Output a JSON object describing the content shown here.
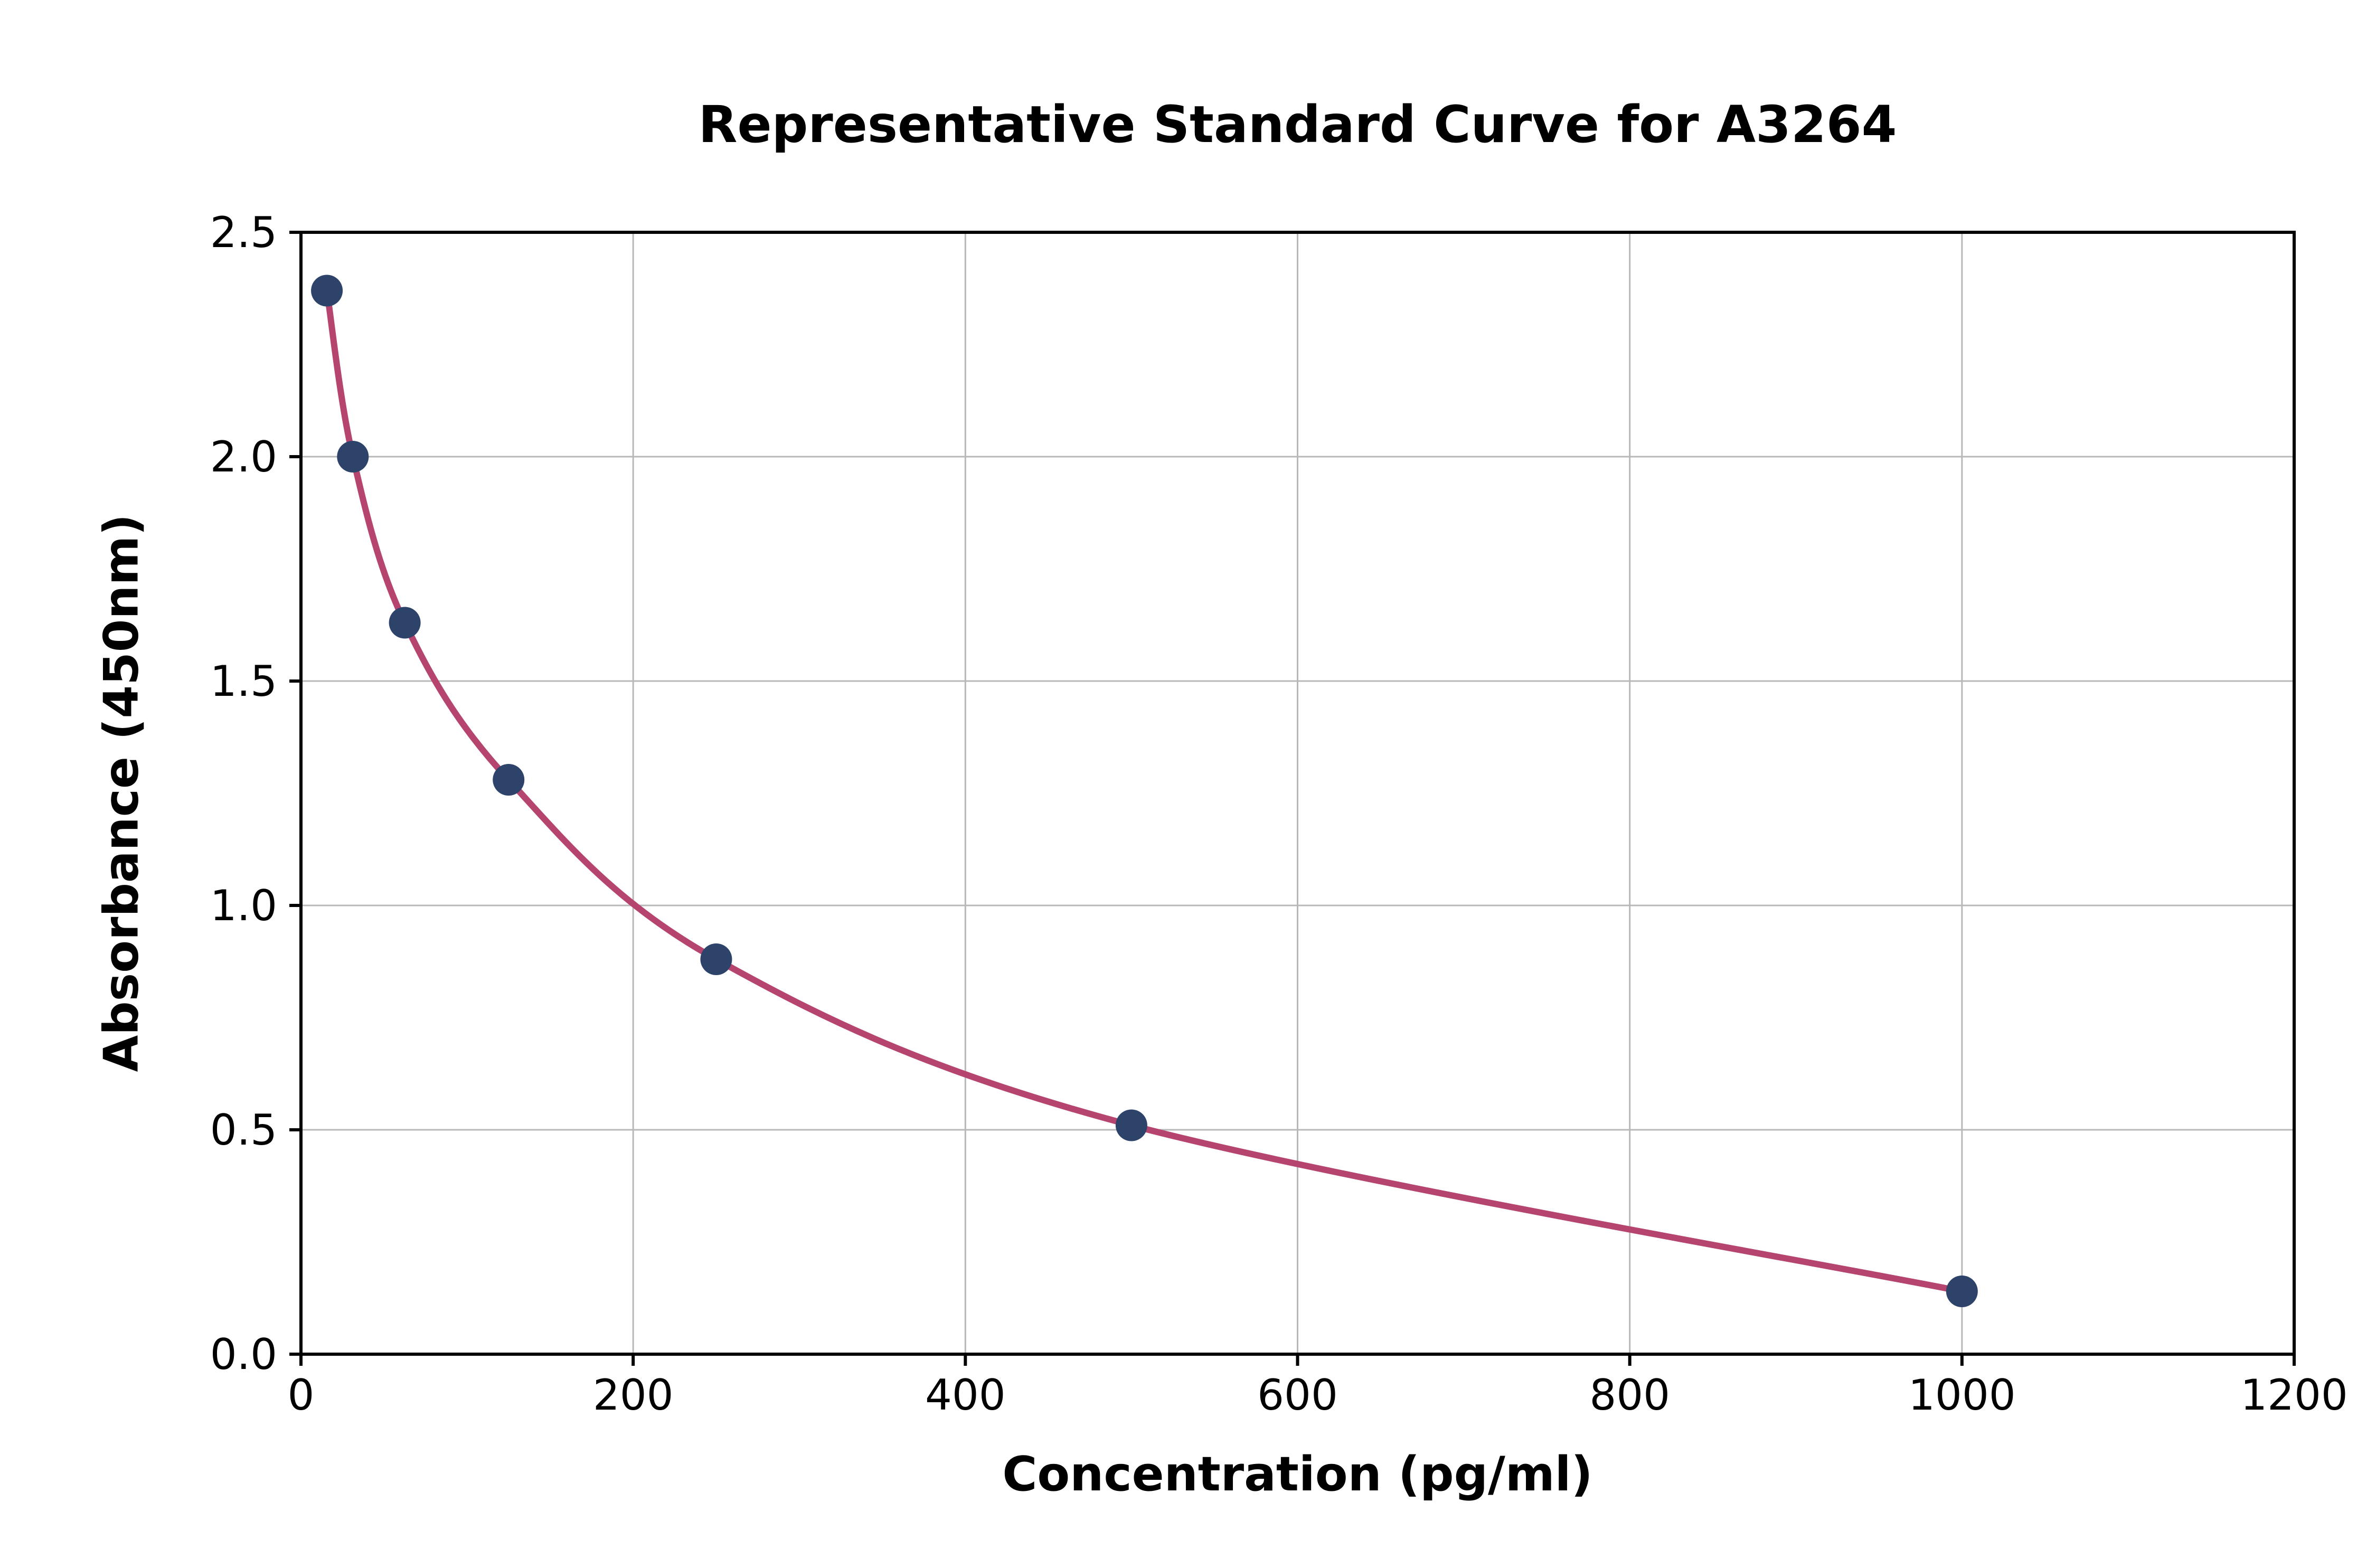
{
  "chart_data": {
    "type": "scatter",
    "title": "Representative Standard Curve for A3264",
    "xlabel": "Concentration (pg/ml)",
    "ylabel": "Absorbance (450nm)",
    "xlim": [
      0,
      1200
    ],
    "ylim": [
      0.0,
      2.5
    ],
    "xtick_values": [
      0,
      200,
      400,
      600,
      800,
      1000,
      1200
    ],
    "xtick_labels": [
      "0",
      "200",
      "400",
      "600",
      "800",
      "1000",
      "1200"
    ],
    "ytick_values": [
      0.0,
      0.5,
      1.0,
      1.5,
      2.0,
      2.5
    ],
    "ytick_labels": [
      "0.0",
      "0.5",
      "1.0",
      "1.5",
      "2.0",
      "2.5"
    ],
    "grid": true,
    "legend": "none",
    "curve_color": "#b5446e",
    "point_color": "#2e4369",
    "grid_color": "#b8b8b8",
    "spine_color": "#000000",
    "series": [
      {
        "name": "standard-curve",
        "x": [
          15.6,
          31.25,
          62.5,
          125,
          250,
          500,
          1000
        ],
        "y": [
          2.37,
          2.0,
          1.63,
          1.28,
          0.88,
          0.51,
          0.14
        ]
      }
    ]
  }
}
